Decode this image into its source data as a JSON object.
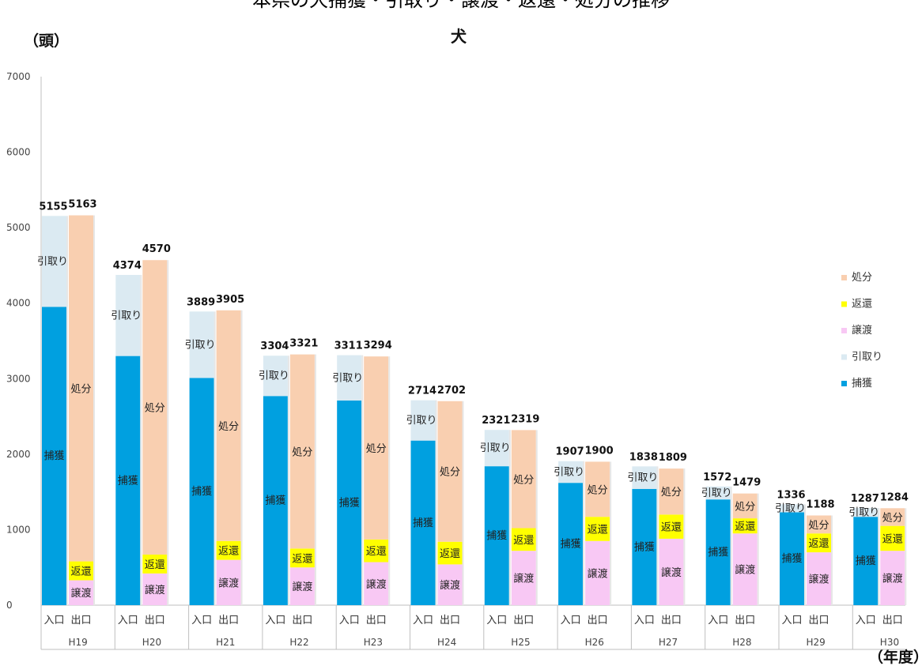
{
  "page": {
    "top_cut_text": "本県の犬捕獲・引取り・譲渡・返還・処分の推移"
  },
  "chart_data": {
    "type": "bar",
    "title": "犬",
    "ylabel": "（頭）",
    "xlabel": "（年度）",
    "ylim": [
      0,
      7000
    ],
    "yticks": [
      0,
      1000,
      2000,
      3000,
      4000,
      5000,
      6000,
      7000
    ],
    "categories": [
      "H19",
      "H20",
      "H21",
      "H22",
      "H23",
      "H24",
      "H25",
      "H26",
      "H27",
      "H28",
      "H29",
      "H30"
    ],
    "sub_labels": [
      "入口",
      "出口"
    ],
    "intake_series": [
      {
        "name": "捕獲",
        "color": "#00a0e0",
        "values": [
          3950,
          3300,
          3010,
          2770,
          2710,
          2180,
          1840,
          1620,
          1540,
          1400,
          1230,
          1170
        ]
      },
      {
        "name": "引取り",
        "color": "#dbeaf2",
        "values": [
          1205,
          1074,
          879,
          534,
          601,
          534,
          481,
          287,
          298,
          172,
          106,
          117
        ]
      }
    ],
    "outcome_series": [
      {
        "name": "譲渡",
        "color": "#f8c8f4",
        "values": [
          330,
          420,
          600,
          500,
          570,
          540,
          720,
          850,
          880,
          950,
          700,
          720
        ]
      },
      {
        "name": "返還",
        "color": "#ffff00",
        "values": [
          250,
          250,
          250,
          250,
          300,
          300,
          300,
          320,
          320,
          200,
          250,
          330
        ]
      },
      {
        "name": "処分",
        "color": "#f9cfb0",
        "values": [
          4583,
          3900,
          3055,
          2571,
          2424,
          1862,
          1299,
          730,
          609,
          329,
          238,
          234
        ]
      }
    ],
    "intake_totals": [
      5155,
      4374,
      3889,
      3304,
      3311,
      2714,
      2321,
      1907,
      1838,
      1572,
      1336,
      1287
    ],
    "outcome_totals": [
      5163,
      4570,
      3905,
      3321,
      3294,
      2702,
      2319,
      1900,
      1809,
      1479,
      1188,
      1284
    ],
    "legend": {
      "position": "right",
      "items": [
        {
          "name": "処分",
          "color": "#f9cfb0"
        },
        {
          "name": "返還",
          "color": "#ffff00"
        },
        {
          "name": "譲渡",
          "color": "#f8c8f4"
        },
        {
          "name": "引取り",
          "color": "#dbeaf2"
        },
        {
          "name": "捕獲",
          "color": "#00a0e0"
        }
      ]
    }
  }
}
